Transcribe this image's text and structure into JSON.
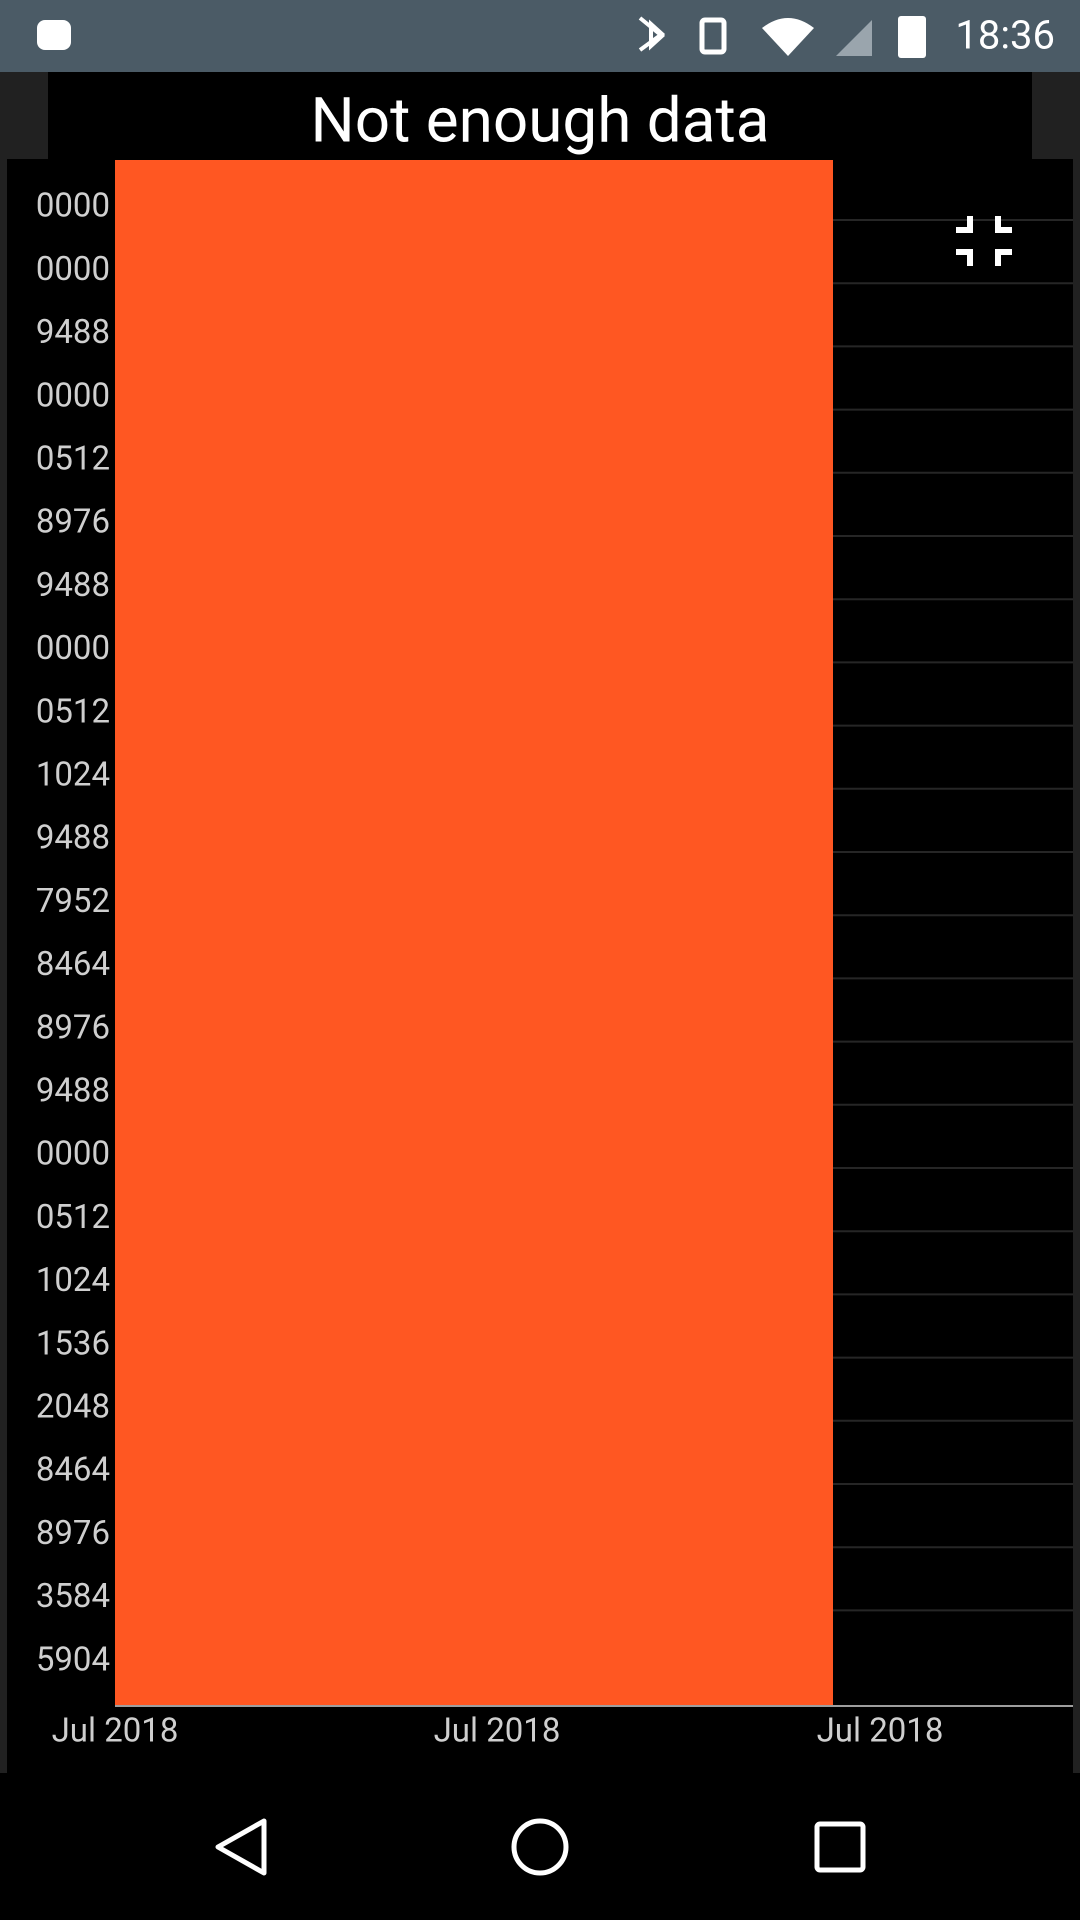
{
  "status_bar": {
    "time": "18:36"
  },
  "header": {
    "title": "Not enough data"
  },
  "chart": {
    "y_labels": [
      "0000",
      "0000",
      "9488",
      "0000",
      "0512",
      "8976",
      "9488",
      "0000",
      "0512",
      "1024",
      "9488",
      "7952",
      "8464",
      "8976",
      "9488",
      "0000",
      "0512",
      "1024",
      "1536",
      "2048",
      "8464",
      "8976",
      "3584",
      "5904"
    ],
    "x_labels": [
      "Jul 2018",
      "Jul 2018",
      "Jul 2018"
    ]
  }
}
